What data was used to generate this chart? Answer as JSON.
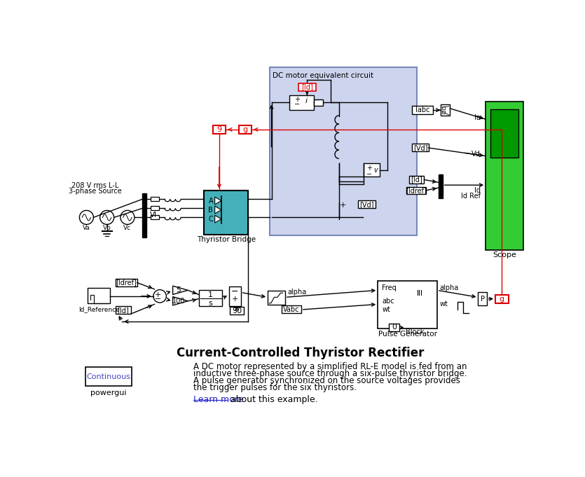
{
  "title": "Current-Controlled Thyristor Rectifier",
  "desc1": "A DC motor represented by a simplified RL-E model is fed from an",
  "desc2": "inductive three-phase source through a six-pulse thyristor bridge.",
  "desc3": "A pulse generator synchronized on the source voltages provides",
  "desc4": "the trigger pulses for the six thyristors.",
  "learn_more": "Learn more",
  "after_link": " about this example.",
  "bg": "#ffffff",
  "motor_box_bg": "#cdd4ed",
  "motor_box_edge": "#7788bb",
  "thyristor_color": "#45b0ba",
  "scope_green": "#33cc33",
  "scope_inner": "#009900",
  "red_color": "#dd0000",
  "blue_link": "#2222cc",
  "continuous_blue": "#4444cc",
  "source_label1": "208 V rms L-L",
  "source_label2": "3-phase Source",
  "vi_label": "VI",
  "thyristor_label": "Thyristor Bridge",
  "motor_title": "DC motor equivalent circuit",
  "scope_label": "Scope",
  "id_ref_label": "Id_Reference",
  "pulse_gen_label": "Pulse Generator",
  "powergui_label": "powergui",
  "continuous_label": "Continuous"
}
